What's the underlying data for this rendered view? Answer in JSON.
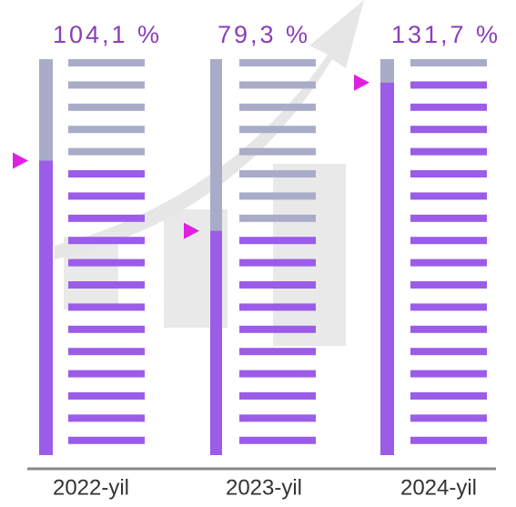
{
  "chart_data": {
    "type": "gauge",
    "categories": [
      "2022-yil",
      "2023-yil",
      "2024-yil"
    ],
    "values": [
      104.1,
      79.3,
      131.7
    ],
    "value_labels": [
      "104,1 %",
      "79,3 %",
      "131,7 %"
    ],
    "ylim": [
      0,
      140
    ],
    "color": "#9b5ce8",
    "track_color": "#a9acc8",
    "marker_color": "#e020e0",
    "label_color": "#8a3fb8"
  }
}
